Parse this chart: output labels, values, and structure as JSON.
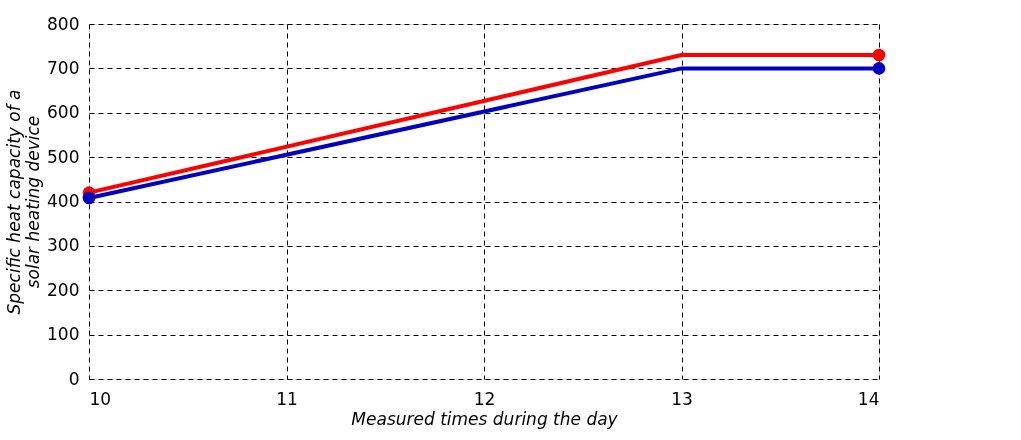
{
  "chart_data": {
    "type": "line",
    "xlabel": "Measured times during the day",
    "ylabel": "Specific heat capacity of a\nsolar heating device",
    "x": [
      10,
      13,
      14
    ],
    "series": [
      {
        "color": "#ff0000",
        "values": [
          420,
          730,
          730
        ]
      },
      {
        "color": "#0000c0",
        "values": [
          408,
          700,
          700
        ]
      }
    ],
    "xlim": [
      10,
      14
    ],
    "xticks": [
      10,
      11,
      12,
      13,
      14
    ],
    "ylim": [
      0,
      800
    ],
    "yticks": [
      0,
      100,
      200,
      300,
      400,
      500,
      600,
      700,
      800
    ],
    "grid": true,
    "marker": "circle",
    "line_style": "solid"
  }
}
